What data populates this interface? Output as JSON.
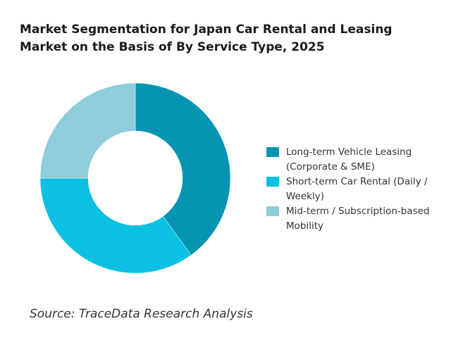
{
  "chart_data": {
    "type": "pie",
    "title": "Market Segmentation for Japan Car Rental and Leasing Market on the Basis of By Service Type, 2025",
    "categories": [
      "Long-term Vehicle Leasing (Corporate & SME)",
      "Short-term Car Rental (Daily / Weekly)",
      "Mid-term / Subscription-based Mobility"
    ],
    "values": [
      40,
      35,
      25
    ],
    "colors": [
      "#0595b3",
      "#0bc0e0",
      "#8ecdd9"
    ],
    "donut": true,
    "legend_position": "right",
    "source": "Source: TraceData Research Analysis"
  }
}
